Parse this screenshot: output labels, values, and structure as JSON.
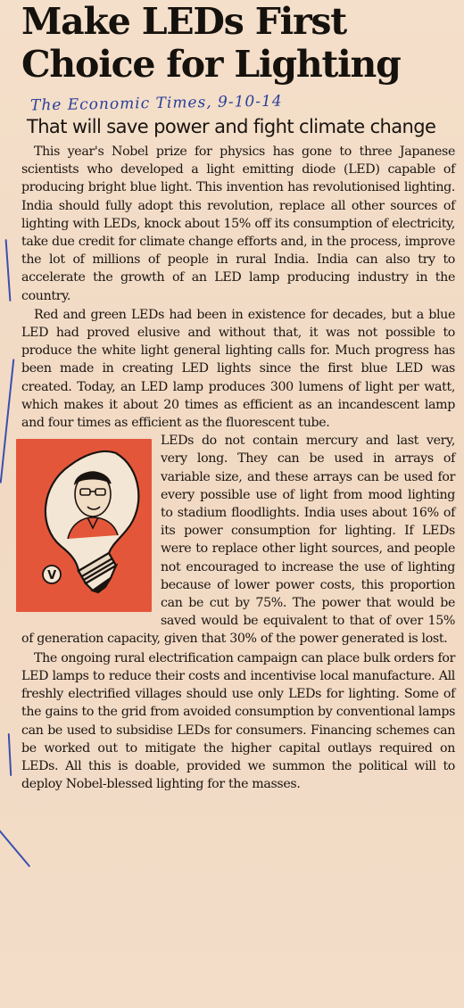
{
  "headline": {
    "line1": "Make LEDs First",
    "line2": "Choice for Lighting"
  },
  "handwritten_note": "The Economic Times, 9-10-14",
  "subheadline": "That will save power and fight climate change",
  "illustration": {
    "icon": "light-bulb-with-face-icon",
    "badge": "V",
    "background_color": "#e4563a"
  },
  "paragraphs": [
    "This year's Nobel prize for physics has gone to three Japanese scientists who developed a light emitting diode (LED) capable of producing bright blue light. This invention has revolutionised lighting. India should fully adopt this revolution, replace all other sources of lighting with LEDs, knock about 15% off its consumption of electricity, take due credit for climate change efforts and, in the process, improve the lot of millions of people in rural India. India can also try to accelerate the growth of an LED lamp producing industry in the country.",
    "Red and green LEDs had been in existence for decades, but a blue LED had proved elusive and without that, it was not possible to produce the white light general lighting calls for. Much progress has been made in creating LED lights since the first blue LED was created. Today, an LED lamp produces 300 lumens of light per watt, which makes it about 20 times as efficient as an incandescent lamp and four times as efficient as the fluorescent tube.",
    "LEDs do not contain mercury and last very, very long. They can be used in arrays of variable size, and these arrays can be used for every possible use of light from mood lighting to stadium floodlights. India uses about 16% of its power consumption for lighting. If LEDs were to replace other light sources, and people not encouraged to increase the use of lighting because of lower power costs, this proportion can be cut by 75%. The power that would be saved would be equivalent to that of over 15% of generation capacity, given that 30% of the power generated is lost.",
    "The ongoing rural electrification campaign can place bulk orders for LED lamps to reduce their costs and incentivise local manufacture. All freshly electrified villages should use only LEDs for lighting. Some of the gains to the grid from avoided consumption by conventional lamps can be used to subsidise LEDs for consumers. Financing schemes can be worked out to mitigate the higher capital outlays required on LEDs. All this is doable, provided we summon the political will to deploy Nobel-blessed lighting for the masses."
  ]
}
